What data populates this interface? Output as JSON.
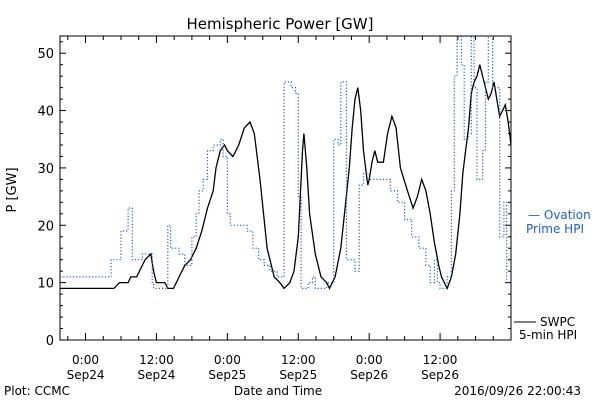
{
  "chart_data": {
    "type": "line",
    "title": "Hemispheric Power [GW]",
    "ylabel": "P [GW]",
    "xlabel": "Date and Time",
    "ylim": [
      0,
      53
    ],
    "xlim": [
      -0.18,
      3.0
    ],
    "x_unit": "days since 2016/09/24 00:00 UT",
    "y_ticks": [
      0,
      10,
      20,
      30,
      40,
      50
    ],
    "x_ticks": [
      {
        "x": 0.0,
        "time": "0:00",
        "date": "Sep24"
      },
      {
        "x": 0.5,
        "time": "12:00",
        "date": "Sep24"
      },
      {
        "x": 1.0,
        "time": "0:00",
        "date": "Sep25"
      },
      {
        "x": 1.5,
        "time": "12:00",
        "date": "Sep25"
      },
      {
        "x": 2.0,
        "time": "0:00",
        "date": "Sep26"
      },
      {
        "x": 2.5,
        "time": "12:00",
        "date": "Sep26"
      }
    ],
    "grid": false,
    "legend": {
      "placement": "right, outside plot"
    },
    "series": [
      {
        "name": "SWPC 5-min HPI",
        "color": "#000000",
        "style": "solid",
        "points": [
          [
            -0.18,
            9
          ],
          [
            0.0,
            9
          ],
          [
            0.1,
            9
          ],
          [
            0.2,
            9
          ],
          [
            0.24,
            10
          ],
          [
            0.3,
            10
          ],
          [
            0.32,
            11
          ],
          [
            0.36,
            11
          ],
          [
            0.38,
            12
          ],
          [
            0.42,
            14
          ],
          [
            0.46,
            15
          ],
          [
            0.48,
            12
          ],
          [
            0.5,
            10
          ],
          [
            0.56,
            10
          ],
          [
            0.58,
            9
          ],
          [
            0.62,
            9
          ],
          [
            0.66,
            11
          ],
          [
            0.7,
            13
          ],
          [
            0.74,
            14
          ],
          [
            0.78,
            16
          ],
          [
            0.82,
            19
          ],
          [
            0.86,
            23
          ],
          [
            0.9,
            26
          ],
          [
            0.92,
            30
          ],
          [
            0.95,
            33
          ],
          [
            0.98,
            34
          ],
          [
            1.0,
            33
          ],
          [
            1.04,
            32
          ],
          [
            1.08,
            34
          ],
          [
            1.12,
            37
          ],
          [
            1.16,
            38
          ],
          [
            1.19,
            36
          ],
          [
            1.23,
            28
          ],
          [
            1.28,
            16
          ],
          [
            1.33,
            11
          ],
          [
            1.37,
            10
          ],
          [
            1.4,
            9
          ],
          [
            1.44,
            10
          ],
          [
            1.47,
            12
          ],
          [
            1.5,
            18
          ],
          [
            1.53,
            33
          ],
          [
            1.54,
            36
          ],
          [
            1.56,
            30
          ],
          [
            1.58,
            22
          ],
          [
            1.62,
            15
          ],
          [
            1.66,
            11
          ],
          [
            1.7,
            10
          ],
          [
            1.72,
            9
          ],
          [
            1.76,
            11
          ],
          [
            1.8,
            16
          ],
          [
            1.83,
            23
          ],
          [
            1.86,
            30
          ],
          [
            1.88,
            37
          ],
          [
            1.9,
            42
          ],
          [
            1.92,
            44
          ],
          [
            1.94,
            40
          ],
          [
            1.96,
            33
          ],
          [
            1.98,
            29
          ],
          [
            1.99,
            27
          ],
          [
            2.0,
            28
          ],
          [
            2.02,
            31
          ],
          [
            2.04,
            33
          ],
          [
            2.06,
            31
          ],
          [
            2.1,
            31
          ],
          [
            2.13,
            36
          ],
          [
            2.16,
            39
          ],
          [
            2.19,
            37
          ],
          [
            2.22,
            30
          ],
          [
            2.27,
            26
          ],
          [
            2.31,
            23
          ],
          [
            2.34,
            25
          ],
          [
            2.37,
            28
          ],
          [
            2.4,
            26
          ],
          [
            2.43,
            22
          ],
          [
            2.46,
            17
          ],
          [
            2.49,
            13
          ],
          [
            2.51,
            11
          ],
          [
            2.53,
            10
          ],
          [
            2.55,
            9
          ],
          [
            2.58,
            11
          ],
          [
            2.61,
            15
          ],
          [
            2.64,
            22
          ],
          [
            2.66,
            29
          ],
          [
            2.68,
            33
          ],
          [
            2.7,
            37
          ],
          [
            2.72,
            43
          ],
          [
            2.74,
            45
          ],
          [
            2.76,
            46
          ],
          [
            2.78,
            48
          ],
          [
            2.8,
            46
          ],
          [
            2.82,
            44
          ],
          [
            2.84,
            42
          ],
          [
            2.86,
            43
          ],
          [
            2.88,
            45
          ],
          [
            2.9,
            42
          ],
          [
            2.92,
            39
          ],
          [
            2.94,
            40
          ],
          [
            2.96,
            41
          ],
          [
            2.98,
            38
          ],
          [
            3.0,
            34
          ]
        ]
      },
      {
        "name": "Ovation Prime HPI",
        "color": "#1f5fbf",
        "style": "dotted",
        "points": [
          [
            -0.18,
            11
          ],
          [
            0.1,
            11
          ],
          [
            0.18,
            14
          ],
          [
            0.25,
            19
          ],
          [
            0.3,
            23
          ],
          [
            0.33,
            14
          ],
          [
            0.38,
            14
          ],
          [
            0.4,
            15
          ],
          [
            0.45,
            15
          ],
          [
            0.47,
            10
          ],
          [
            0.48,
            9
          ],
          [
            0.5,
            9
          ],
          [
            0.55,
            9
          ],
          [
            0.58,
            20
          ],
          [
            0.6,
            16
          ],
          [
            0.63,
            16
          ],
          [
            0.66,
            15
          ],
          [
            0.7,
            13
          ],
          [
            0.72,
            13
          ],
          [
            0.75,
            18
          ],
          [
            0.78,
            22
          ],
          [
            0.8,
            26
          ],
          [
            0.83,
            28
          ],
          [
            0.86,
            33
          ],
          [
            0.9,
            34
          ],
          [
            0.95,
            35
          ],
          [
            0.97,
            32
          ],
          [
            1.0,
            22
          ],
          [
            1.02,
            20
          ],
          [
            1.1,
            20
          ],
          [
            1.14,
            19
          ],
          [
            1.18,
            16
          ],
          [
            1.22,
            14
          ],
          [
            1.26,
            13
          ],
          [
            1.3,
            12
          ],
          [
            1.35,
            11
          ],
          [
            1.4,
            45
          ],
          [
            1.45,
            44
          ],
          [
            1.48,
            43
          ],
          [
            1.5,
            25
          ],
          [
            1.52,
            9
          ],
          [
            1.55,
            9
          ],
          [
            1.57,
            10
          ],
          [
            1.6,
            11
          ],
          [
            1.62,
            9
          ],
          [
            1.65,
            9
          ],
          [
            1.7,
            10
          ],
          [
            1.75,
            35
          ],
          [
            1.78,
            34
          ],
          [
            1.8,
            45
          ],
          [
            1.82,
            45
          ],
          [
            1.84,
            14
          ],
          [
            1.86,
            14
          ],
          [
            1.9,
            12
          ],
          [
            1.93,
            27
          ],
          [
            1.96,
            29
          ],
          [
            2.0,
            28
          ],
          [
            2.05,
            28
          ],
          [
            2.1,
            28
          ],
          [
            2.15,
            26
          ],
          [
            2.2,
            24
          ],
          [
            2.25,
            21
          ],
          [
            2.3,
            18
          ],
          [
            2.35,
            16
          ],
          [
            2.4,
            13
          ],
          [
            2.43,
            10
          ],
          [
            2.46,
            14
          ],
          [
            2.48,
            10
          ],
          [
            2.5,
            9
          ],
          [
            2.52,
            9
          ],
          [
            2.55,
            11
          ],
          [
            2.58,
            26
          ],
          [
            2.6,
            46
          ],
          [
            2.62,
            55
          ],
          [
            2.65,
            48
          ],
          [
            2.67,
            35
          ],
          [
            2.7,
            36
          ],
          [
            2.72,
            55
          ],
          [
            2.74,
            44
          ],
          [
            2.76,
            28
          ],
          [
            2.8,
            33
          ],
          [
            2.82,
            45
          ],
          [
            2.84,
            55
          ],
          [
            2.87,
            44
          ],
          [
            2.9,
            44
          ],
          [
            2.92,
            18
          ],
          [
            2.95,
            24
          ],
          [
            2.97,
            10
          ]
        ]
      }
    ]
  },
  "legend": {
    "ovation_line1": "— Ovation",
    "ovation_line2": "Prime HPI",
    "swpc_line1": "SWPC",
    "swpc_line2": "5-min HPI"
  },
  "footer": {
    "plot_credit": "Plot: CCMC",
    "timestamp": "2016/09/26 22:00:43"
  }
}
